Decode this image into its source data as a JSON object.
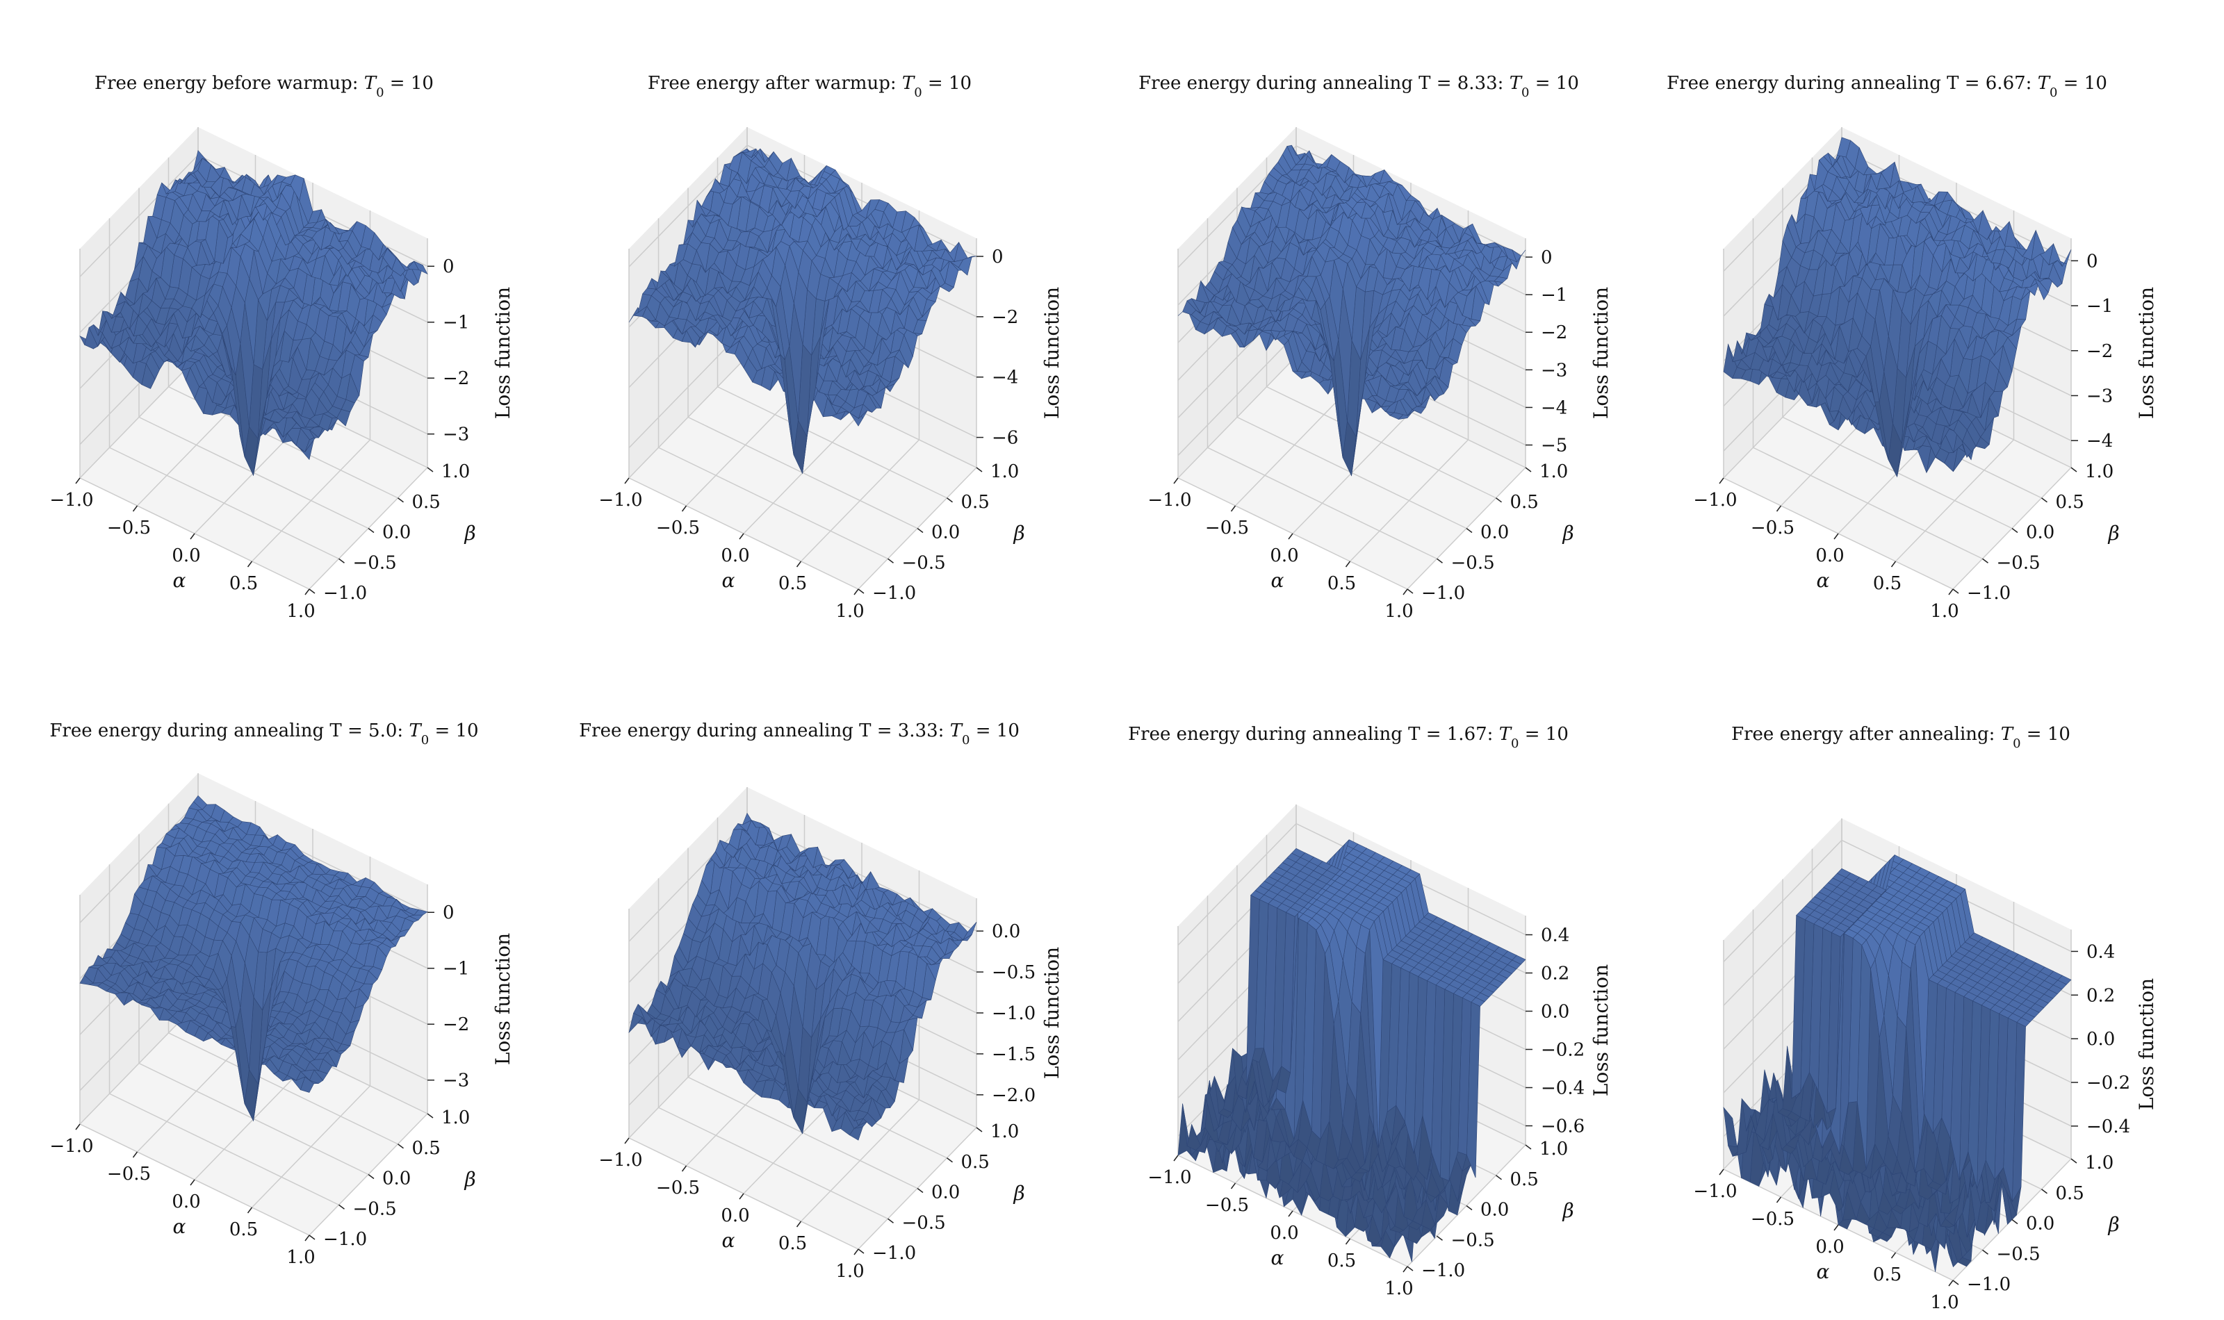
{
  "figure": {
    "surface_color": "#4a6aa5",
    "surface_edge_color": "#2e4676",
    "pane_color": "#f2f2f2",
    "grid_color": "#cccccc"
  },
  "chart_data": [
    {
      "type": "surface3d",
      "title": "Free energy before warmup: $T_0 = 10$",
      "title_parts": [
        "Free energy before warmup: ",
        "T",
        "0",
        " = 10"
      ],
      "xlabel": "α",
      "ylabel": "β",
      "zlabel": "Loss function",
      "xticks": [
        "−1.0",
        "−0.5",
        "0.0",
        "0.5",
        "1.0"
      ],
      "yticks": [
        "−1.0",
        "−0.5",
        "0.0",
        "0.5",
        "1.0"
      ],
      "zticks": [
        "−3",
        "−2",
        "−1",
        "0"
      ],
      "xlim": [
        -1,
        1
      ],
      "ylim": [
        -1,
        1
      ],
      "zlim": [
        -3.6,
        0.5
      ],
      "surface": {
        "plateau": 0.0,
        "floor": -1.2,
        "well_min": -3.5,
        "roughness": 0.35,
        "shape": "ridge"
      }
    },
    {
      "type": "surface3d",
      "title": "Free energy after warmup: $T_0 = 10$",
      "title_parts": [
        "Free energy after warmup: ",
        "T",
        "0",
        " = 10"
      ],
      "xlabel": "α",
      "ylabel": "β",
      "zlabel": "Loss function",
      "xticks": [
        "−1.0",
        "−0.5",
        "0.0",
        "0.5",
        "1.0"
      ],
      "yticks": [
        "−1.0",
        "−0.5",
        "0.0",
        "0.5",
        "1.0"
      ],
      "zticks": [
        "−6",
        "−4",
        "−2",
        "0"
      ],
      "xlim": [
        -1,
        1
      ],
      "ylim": [
        -1,
        1
      ],
      "zlim": [
        -7.0,
        0.6
      ],
      "surface": {
        "plateau": 0.0,
        "floor": -1.5,
        "well_min": -6.8,
        "roughness": 0.5,
        "shape": "ridge"
      }
    },
    {
      "type": "surface3d",
      "title": "Free energy during annealing T = 8.33: $T_0 = 10$",
      "title_parts": [
        "Free energy during annealing T = 8.33: ",
        "T",
        "0",
        " = 10"
      ],
      "xlabel": "α",
      "ylabel": "β",
      "zlabel": "Loss function",
      "xticks": [
        "−1.0",
        "−0.5",
        "0.0",
        "0.5",
        "1.0"
      ],
      "yticks": [
        "−1.0",
        "−0.5",
        "0.0",
        "0.5",
        "1.0"
      ],
      "zticks": [
        "−5",
        "−4",
        "−3",
        "−2",
        "−1",
        "0"
      ],
      "xlim": [
        -1,
        1
      ],
      "ylim": [
        -1,
        1
      ],
      "zlim": [
        -5.6,
        0.5
      ],
      "surface": {
        "plateau": 0.0,
        "floor": -1.2,
        "well_min": -5.5,
        "roughness": 0.45,
        "shape": "ridge"
      }
    },
    {
      "type": "surface3d",
      "title": "Free energy during annealing T = 6.67: $T_0 = 10$",
      "title_parts": [
        "Free energy during annealing T = 6.67: ",
        "T",
        "0",
        " = 10"
      ],
      "xlabel": "α",
      "ylabel": "β",
      "zlabel": "Loss function",
      "xticks": [
        "−1.0",
        "−0.5",
        "0.0",
        "0.5",
        "1.0"
      ],
      "yticks": [
        "−1.0",
        "−0.5",
        "0.0",
        "0.5",
        "1.0"
      ],
      "zticks": [
        "−4",
        "−3",
        "−2",
        "−1",
        "0"
      ],
      "xlim": [
        -1,
        1
      ],
      "ylim": [
        -1,
        1
      ],
      "zlim": [
        -4.6,
        0.5
      ],
      "surface": {
        "plateau": 0.0,
        "floor": -2.0,
        "well_min": -4.5,
        "roughness": 0.3,
        "shape": "steps"
      }
    },
    {
      "type": "surface3d",
      "title": "Free energy during annealing T = 5.0: $T_0 = 10$",
      "title_parts": [
        "Free energy during annealing T = 5.0: ",
        "T",
        "0",
        " = 10"
      ],
      "xlabel": "α",
      "ylabel": "β",
      "zlabel": "Loss function",
      "xticks": [
        "−1.0",
        "−0.5",
        "0.0",
        "0.5",
        "1.0"
      ],
      "yticks": [
        "−1.0",
        "−0.5",
        "0.0",
        "0.5",
        "1.0"
      ],
      "zticks": [
        "−3",
        "−2",
        "−1",
        "0"
      ],
      "xlim": [
        -1,
        1
      ],
      "ylim": [
        -1,
        1
      ],
      "zlim": [
        -3.6,
        0.5
      ],
      "surface": {
        "plateau": 0.0,
        "floor": -1.0,
        "well_min": -3.5,
        "roughness": 0.2,
        "shape": "steps"
      }
    },
    {
      "type": "surface3d",
      "title": "Free energy during annealing T = 3.33: $T_0 = 10$",
      "title_parts": [
        "Free energy during annealing T = 3.33: ",
        "T",
        "0",
        " = 10"
      ],
      "xlabel": "α",
      "ylabel": "β",
      "zlabel": "Loss function",
      "xticks": [
        "−1.0",
        "−0.5",
        "0.0",
        "0.5",
        "1.0"
      ],
      "yticks": [
        "−1.0",
        "−0.5",
        "0.0",
        "0.5",
        "1.0"
      ],
      "zticks": [
        "−2.0",
        "−1.5",
        "−1.0",
        "−0.5",
        "0.0"
      ],
      "xlim": [
        -1,
        1
      ],
      "ylim": [
        -1,
        1
      ],
      "zlim": [
        -2.4,
        0.4
      ],
      "surface": {
        "plateau": 0.0,
        "floor": -1.0,
        "well_min": -2.3,
        "roughness": 0.25,
        "shape": "steps"
      }
    },
    {
      "type": "surface3d",
      "title": "Free energy during annealing T = 1.67: $T_0 = 10$",
      "title_parts": [
        "Free energy during annealing T = 1.67: ",
        "T",
        "0",
        " = 10"
      ],
      "xlabel": "α",
      "ylabel": "β",
      "zlabel": "Loss function",
      "xticks": [
        "−1.0",
        "−0.5",
        "0.0",
        "0.5",
        "1.0"
      ],
      "yticks": [
        "−1.0",
        "−0.5",
        "0.0",
        "0.5",
        "1.0"
      ],
      "zticks": [
        "−0.6",
        "−0.4",
        "−0.2",
        "0.0",
        "0.2",
        "0.4"
      ],
      "xlim": [
        -1,
        1
      ],
      "ylim": [
        -1,
        1
      ],
      "zlim": [
        -0.7,
        0.5
      ],
      "surface": {
        "plateau": 0.45,
        "floor": -0.6,
        "well_min": -0.65,
        "roughness": 0.1,
        "shape": "block"
      }
    },
    {
      "type": "surface3d",
      "title": "Free energy after annealing: $T_0 = 10$",
      "title_parts": [
        "Free energy after annealing: ",
        "T",
        "0",
        " = 10"
      ],
      "xlabel": "α",
      "ylabel": "β",
      "zlabel": "Loss function",
      "xticks": [
        "−1.0",
        "−0.5",
        "0.0",
        "0.5",
        "1.0"
      ],
      "yticks": [
        "−1.0",
        "−0.5",
        "0.0",
        "0.5",
        "1.0"
      ],
      "zticks": [
        "−0.4",
        "−0.2",
        "0.0",
        "0.2",
        "0.4"
      ],
      "xlim": [
        -1,
        1
      ],
      "ylim": [
        -1,
        1
      ],
      "zlim": [
        -0.55,
        0.5
      ],
      "surface": {
        "plateau": 0.45,
        "floor": -0.45,
        "well_min": -0.5,
        "roughness": 0.12,
        "shape": "block"
      }
    }
  ]
}
